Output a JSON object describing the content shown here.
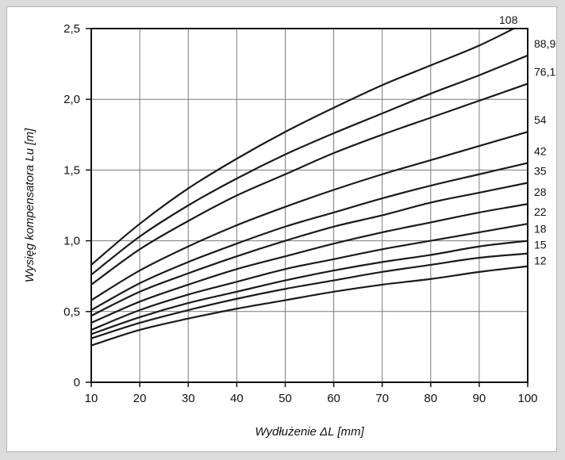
{
  "chart_data": {
    "type": "line",
    "title": "",
    "xlabel": "Wydłużenie ΔL [mm]",
    "ylabel": "Wysięg kompensatora Lu [m]",
    "xlim": [
      10,
      100
    ],
    "ylim": [
      0,
      2.5
    ],
    "x_ticks": [
      10,
      20,
      30,
      40,
      50,
      60,
      70,
      80,
      90,
      100
    ],
    "y_ticks": [
      {
        "value": 0,
        "label": "0"
      },
      {
        "value": 0.5,
        "label": "0,5"
      },
      {
        "value": 1.0,
        "label": "1,0"
      },
      {
        "value": 1.5,
        "label": "1,5"
      },
      {
        "value": 2.0,
        "label": "2,0"
      },
      {
        "value": 2.5,
        "label": "2,5"
      }
    ],
    "grid": true,
    "x": [
      10,
      20,
      30,
      40,
      50,
      60,
      70,
      80,
      90,
      100
    ],
    "series": [
      {
        "name": "108",
        "values": [
          0.83,
          1.12,
          1.37,
          1.58,
          1.77,
          1.94,
          2.1,
          2.24,
          2.38,
          2.55
        ]
      },
      {
        "name": "88,9",
        "values": [
          0.76,
          1.03,
          1.25,
          1.44,
          1.61,
          1.76,
          1.9,
          2.04,
          2.17,
          2.31
        ]
      },
      {
        "name": "76,1",
        "values": [
          0.69,
          0.94,
          1.14,
          1.32,
          1.47,
          1.62,
          1.75,
          1.87,
          1.99,
          2.11
        ]
      },
      {
        "name": "54",
        "values": [
          0.58,
          0.79,
          0.96,
          1.11,
          1.24,
          1.36,
          1.47,
          1.57,
          1.67,
          1.77
        ]
      },
      {
        "name": "42",
        "values": [
          0.51,
          0.7,
          0.85,
          0.98,
          1.1,
          1.2,
          1.3,
          1.39,
          1.47,
          1.55
        ]
      },
      {
        "name": "35",
        "values": [
          0.47,
          0.64,
          0.77,
          0.89,
          1.0,
          1.1,
          1.18,
          1.27,
          1.34,
          1.41
        ]
      },
      {
        "name": "28",
        "values": [
          0.42,
          0.57,
          0.69,
          0.8,
          0.89,
          0.98,
          1.06,
          1.13,
          1.2,
          1.26
        ]
      },
      {
        "name": "22",
        "values": [
          0.37,
          0.51,
          0.62,
          0.71,
          0.8,
          0.87,
          0.94,
          1.0,
          1.06,
          1.12
        ]
      },
      {
        "name": "18",
        "values": [
          0.34,
          0.46,
          0.56,
          0.64,
          0.72,
          0.79,
          0.85,
          0.9,
          0.96,
          1.0
        ]
      },
      {
        "name": "15",
        "values": [
          0.31,
          0.42,
          0.51,
          0.59,
          0.66,
          0.72,
          0.78,
          0.83,
          0.88,
          0.91
        ]
      },
      {
        "name": "12",
        "values": [
          0.26,
          0.37,
          0.45,
          0.52,
          0.58,
          0.64,
          0.69,
          0.73,
          0.78,
          0.82
        ]
      }
    ],
    "line_color": "#1a1a1a",
    "grid_color": "#7a7a7a"
  }
}
